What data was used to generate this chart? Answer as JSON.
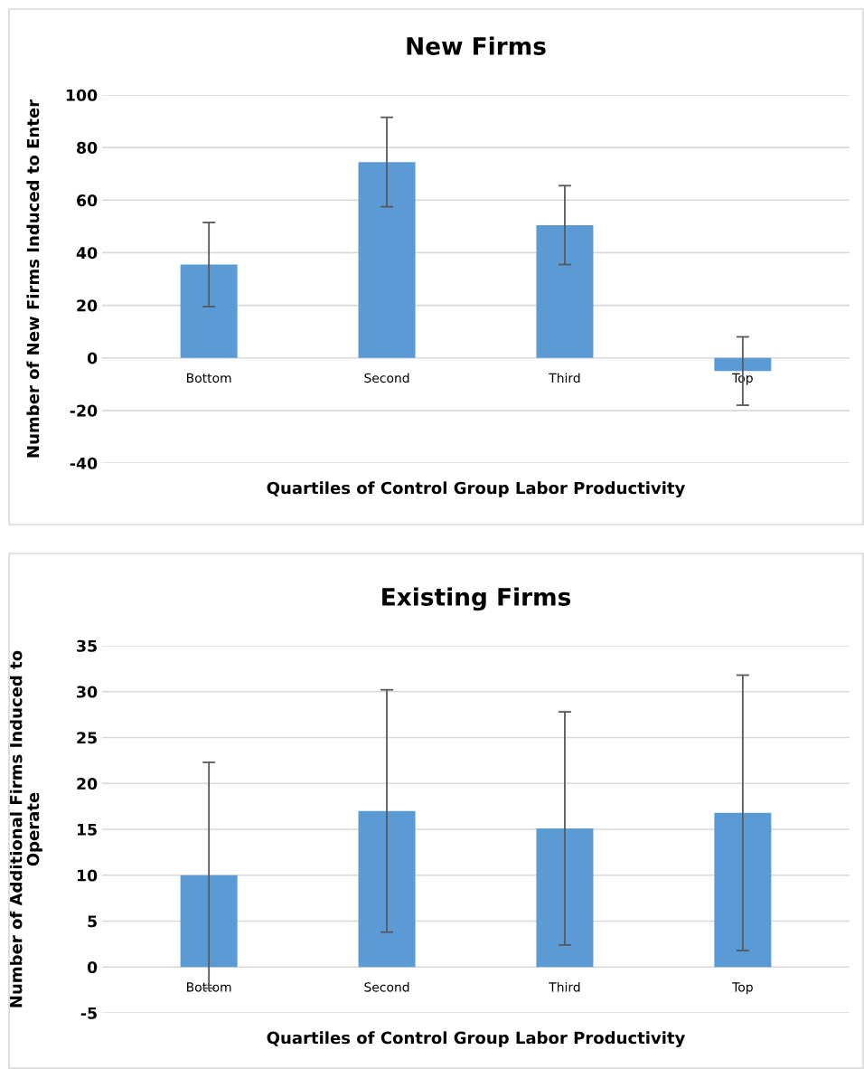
{
  "chart_data": [
    {
      "type": "bar",
      "title": "New Firms",
      "xlabel": "Quartiles of Control Group Labor Productivity",
      "ylabel": "Number of New Firms Induced to Enter",
      "categories": [
        "Bottom",
        "Second",
        "Third",
        "Top"
      ],
      "values": [
        35.5,
        74.5,
        50.5,
        -5
      ],
      "errors": [
        16,
        17,
        15,
        13
      ],
      "color": "#5b9bd5",
      "ylim": [
        -40,
        100
      ],
      "yticks": [
        -40,
        -20,
        0,
        20,
        40,
        60,
        80,
        100
      ],
      "grid": "y"
    },
    {
      "type": "bar",
      "title": "Existing Firms",
      "xlabel": "Quartiles of Control Group Labor Productivity",
      "ylabel": "Number of Additional Firms Induced to\nOperate",
      "categories": [
        "Bottom",
        "Second",
        "Third",
        "Top"
      ],
      "values": [
        10,
        17,
        15.1,
        16.8
      ],
      "errors": [
        12.3,
        13.2,
        12.7,
        15
      ],
      "color": "#5b9bd5",
      "ylim": [
        -5,
        35
      ],
      "yticks": [
        -5,
        0,
        5,
        10,
        15,
        20,
        25,
        30,
        35
      ],
      "grid": "y"
    }
  ]
}
